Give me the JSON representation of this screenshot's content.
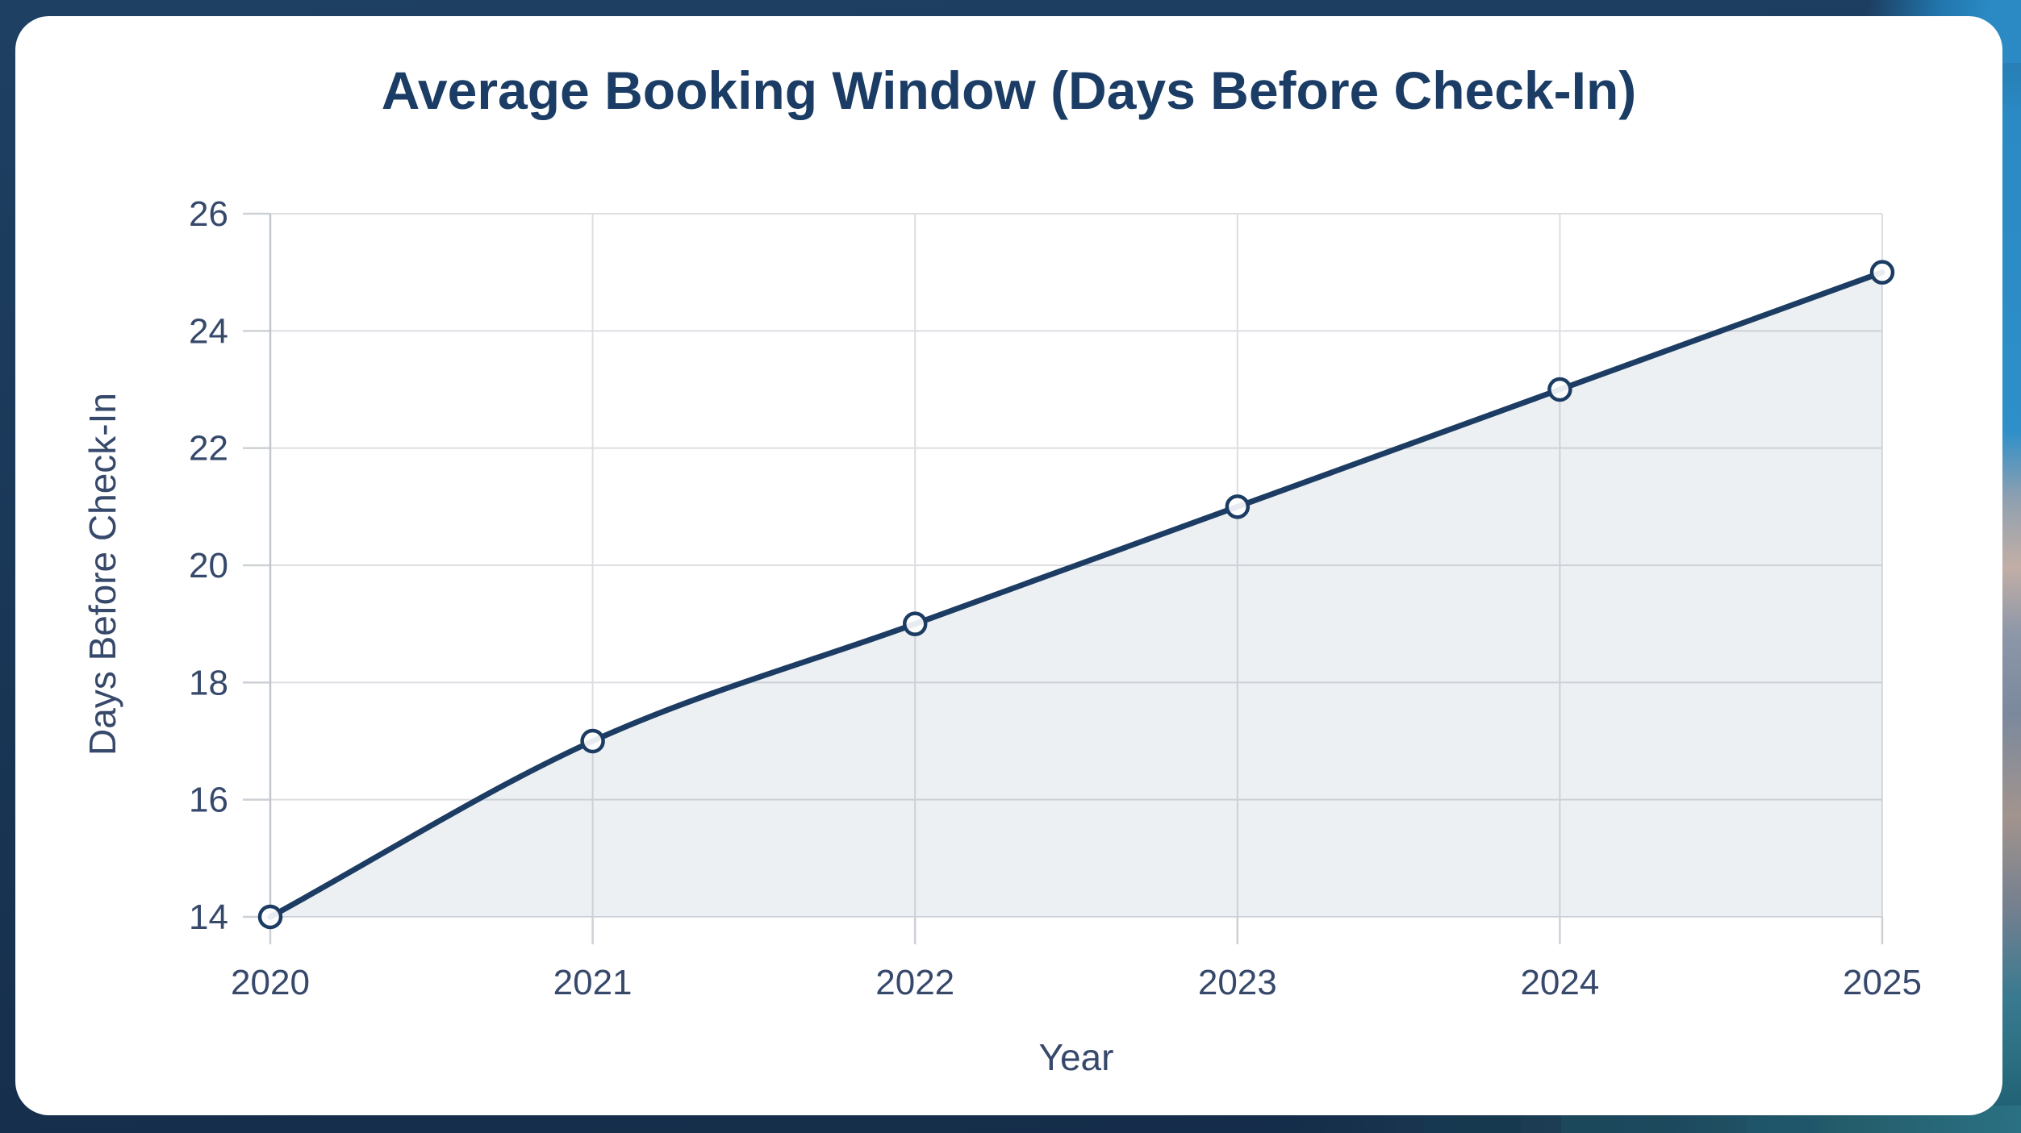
{
  "chart_data": {
    "type": "area",
    "title": "Average Booking Window (Days Before Check-In)",
    "xlabel": "Year",
    "ylabel": "Days Before Check-In",
    "categories": [
      "2020",
      "2021",
      "2022",
      "2023",
      "2024",
      "2025"
    ],
    "values": [
      14,
      17,
      19,
      21,
      23,
      25
    ],
    "series": [
      {
        "name": "Average Booking Window (Days Before Check-In)",
        "values": [
          14,
          17,
          19,
          21,
          23,
          25
        ]
      }
    ],
    "ylim": [
      14,
      26
    ],
    "yticks": [
      26,
      24,
      22,
      20,
      18,
      16,
      14
    ],
    "grid": true,
    "legend": false,
    "line_smoothing": "monotone",
    "marker": "open-circle",
    "colors": {
      "line": "#1c3c63",
      "marker_fill": "#ffffff",
      "area_fill": "rgba(28,60,99,0.08)",
      "grid": "#dcdee2",
      "axis_line": "#c3c7cd",
      "tick": "#cdd1d6",
      "tick_label": "#37496b",
      "title": "#1b3c64"
    }
  },
  "page_background": {
    "base_navy": "#1a3757",
    "photo_sky_blue": "#2e8fc9",
    "photo_cloud": "#c2aea6",
    "photo_teal": "#2a7183"
  }
}
